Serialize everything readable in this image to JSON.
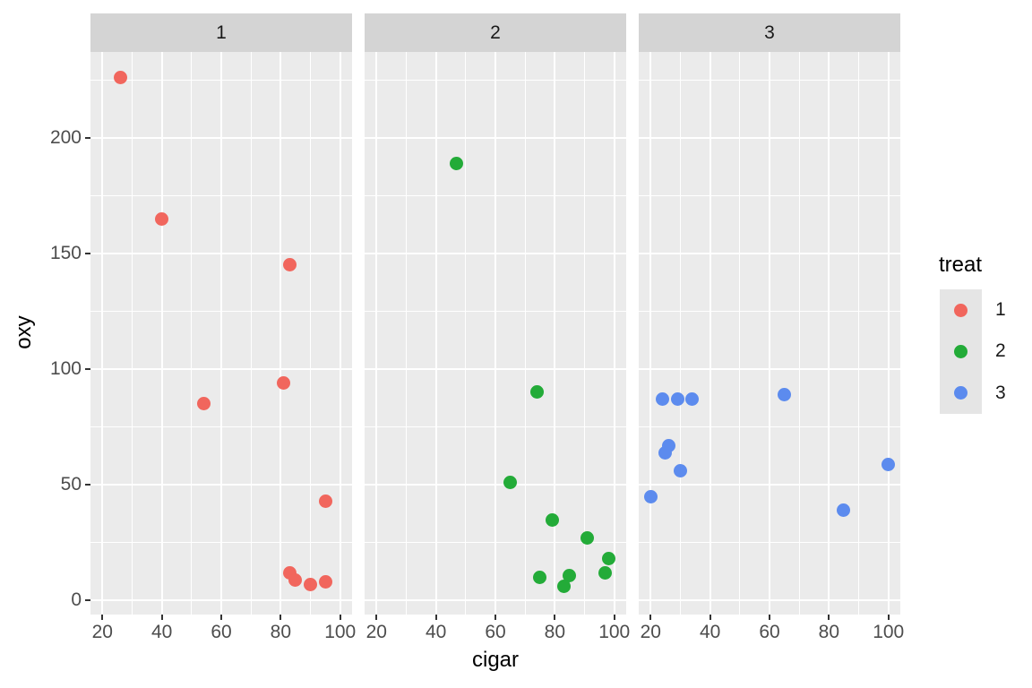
{
  "chart_data": {
    "type": "scatter",
    "title": "",
    "xlabel": "cigar",
    "ylabel": "oxy",
    "grid": true,
    "legend_position": "right",
    "x_ticks": [
      20,
      40,
      60,
      80,
      100
    ],
    "y_ticks": [
      0,
      50,
      100,
      150,
      200
    ],
    "x_minor_ticks": [
      30,
      50,
      70,
      90
    ],
    "y_minor_ticks": [
      25,
      75,
      125,
      175,
      225
    ],
    "xlim": [
      16,
      104
    ],
    "ylim": [
      -6,
      237
    ],
    "legend": {
      "title": "treat",
      "entries": [
        {
          "label": "1",
          "color": "#F1665D"
        },
        {
          "label": "2",
          "color": "#23AB38"
        },
        {
          "label": "3",
          "color": "#5C8BEE"
        }
      ]
    },
    "facets": [
      {
        "label": "1",
        "treat": "1",
        "points": [
          [
            26,
            226
          ],
          [
            40,
            165
          ],
          [
            83,
            145
          ],
          [
            81,
            94
          ],
          [
            54,
            85
          ],
          [
            95,
            43
          ],
          [
            83,
            12
          ],
          [
            85,
            9
          ],
          [
            90,
            7
          ],
          [
            95,
            8
          ]
        ]
      },
      {
        "label": "2",
        "treat": "2",
        "points": [
          [
            47,
            189
          ],
          [
            74,
            90
          ],
          [
            65,
            51
          ],
          [
            79,
            35
          ],
          [
            91,
            27
          ],
          [
            98,
            18
          ],
          [
            97,
            12
          ],
          [
            85,
            11
          ],
          [
            75,
            10
          ],
          [
            83,
            6
          ]
        ]
      },
      {
        "label": "3",
        "treat": "3",
        "points": [
          [
            65,
            89
          ],
          [
            24,
            87
          ],
          [
            29,
            87
          ],
          [
            34,
            87
          ],
          [
            26,
            67
          ],
          [
            25,
            64
          ],
          [
            30,
            56
          ],
          [
            100,
            59
          ],
          [
            20,
            45
          ],
          [
            85,
            39
          ]
        ]
      }
    ],
    "colors": {
      "panel_background": "#EBEBEB",
      "strip_background": "#D4D4D4",
      "grid_line": "#FFFFFF",
      "tick_label": "#4D4D4D",
      "axis_title": "#000000",
      "legend_key_background": "#E5E5E5"
    }
  }
}
